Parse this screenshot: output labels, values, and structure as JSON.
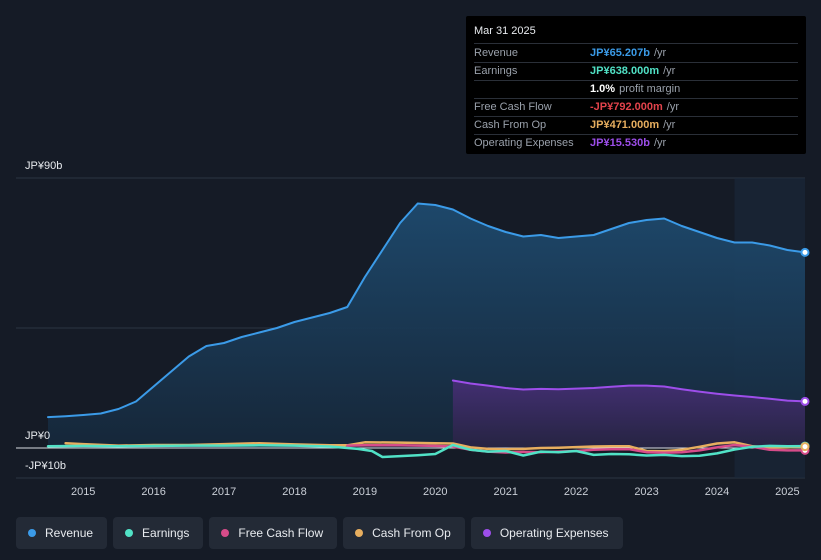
{
  "chart_data": {
    "type": "area",
    "title": "",
    "y_unit": "JP¥",
    "ylim": [
      -10,
      90
    ],
    "y_tick_labels": [
      "JP¥90b",
      "JP¥0",
      "-JP¥10b"
    ],
    "x_tick_labels": [
      "2015",
      "2016",
      "2017",
      "2018",
      "2019",
      "2020",
      "2021",
      "2022",
      "2023",
      "2024",
      "2025"
    ],
    "x_range": [
      2014.5,
      2025.25
    ],
    "highlight_from": 2024.25,
    "series": [
      {
        "name": "Revenue",
        "color": "#3b9be8",
        "fill": true,
        "x": [
          2014.5,
          2014.75,
          2015.0,
          2015.25,
          2015.5,
          2015.75,
          2016.0,
          2016.25,
          2016.5,
          2016.75,
          2017.0,
          2017.25,
          2017.5,
          2017.75,
          2018.0,
          2018.25,
          2018.5,
          2018.75,
          2019.0,
          2019.25,
          2019.5,
          2019.75,
          2020.0,
          2020.25,
          2020.5,
          2020.75,
          2021.0,
          2021.25,
          2021.5,
          2021.75,
          2022.0,
          2022.25,
          2022.5,
          2022.75,
          2023.0,
          2023.25,
          2023.5,
          2023.75,
          2024.0,
          2024.25,
          2024.5,
          2024.75,
          2025.0,
          2025.25
        ],
        "values": [
          10.3,
          10.6,
          11.0,
          11.5,
          13.0,
          15.5,
          20.5,
          25.5,
          30.5,
          34.0,
          35.0,
          37.0,
          38.5,
          40.0,
          42.0,
          43.5,
          45.0,
          47.0,
          57.0,
          66.0,
          75.0,
          81.5,
          81.0,
          79.5,
          76.5,
          74.0,
          72.0,
          70.5,
          71.0,
          70.0,
          70.5,
          71.0,
          73.0,
          75.0,
          76.0,
          76.5,
          74.0,
          72.0,
          70.0,
          68.5,
          68.5,
          67.5,
          66.0,
          65.207
        ]
      },
      {
        "name": "Earnings",
        "color": "#51e2c6",
        "fill": false,
        "x": [
          2014.5,
          2015.0,
          2015.5,
          2016.0,
          2016.5,
          2017.0,
          2017.5,
          2018.0,
          2018.5,
          2018.9,
          2019.1,
          2019.25,
          2019.5,
          2019.75,
          2020.0,
          2020.25,
          2020.5,
          2020.75,
          2021.0,
          2021.25,
          2021.5,
          2021.75,
          2022.0,
          2022.25,
          2022.5,
          2022.75,
          2023.0,
          2023.25,
          2023.5,
          2023.75,
          2024.0,
          2024.25,
          2024.5,
          2024.75,
          2025.0,
          2025.25
        ],
        "values": [
          0.6,
          0.7,
          0.6,
          0.7,
          0.8,
          0.8,
          0.9,
          0.8,
          0.5,
          -0.3,
          -1.0,
          -3.0,
          -2.7,
          -2.4,
          -2.0,
          1.0,
          -0.6,
          -1.2,
          -1.0,
          -2.5,
          -1.2,
          -1.4,
          -1.0,
          -2.3,
          -2.0,
          -2.1,
          -2.5,
          -2.3,
          -2.7,
          -2.6,
          -1.8,
          -0.5,
          0.4,
          0.7,
          0.6,
          0.638
        ]
      },
      {
        "name": "Free Cash Flow",
        "color": "#d74c8a",
        "fill": false,
        "x": [
          2018.75,
          2019.0,
          2019.5,
          2020.0,
          2020.25,
          2020.5,
          2020.75,
          2021.0,
          2021.25,
          2021.5,
          2021.75,
          2022.0,
          2022.25,
          2022.5,
          2022.75,
          2023.0,
          2023.25,
          2023.5,
          2023.75,
          2024.0,
          2024.25,
          2024.5,
          2024.75,
          2025.0,
          2025.25
        ],
        "values": [
          0.8,
          0.9,
          0.9,
          0.7,
          0.5,
          -0.6,
          -1.2,
          -1.5,
          -1.3,
          -1.4,
          -1.2,
          -1.0,
          -0.6,
          -0.4,
          -0.4,
          -1.4,
          -1.6,
          -1.4,
          -0.8,
          0.2,
          1.0,
          0.4,
          -0.6,
          -0.8,
          -0.792
        ]
      },
      {
        "name": "Cash From Op",
        "color": "#e7ae5f",
        "fill": false,
        "x": [
          2014.75,
          2015.0,
          2015.5,
          2016.0,
          2016.5,
          2017.0,
          2017.5,
          2018.0,
          2018.5,
          2018.75,
          2019.0,
          2019.5,
          2020.0,
          2020.25,
          2020.5,
          2020.75,
          2021.0,
          2021.25,
          2021.5,
          2021.75,
          2022.0,
          2022.25,
          2022.5,
          2022.75,
          2023.0,
          2023.25,
          2023.5,
          2023.75,
          2024.0,
          2024.25,
          2024.5,
          2024.75,
          2025.0,
          2025.25
        ],
        "values": [
          1.6,
          1.3,
          0.8,
          1.0,
          1.0,
          1.3,
          1.6,
          1.2,
          0.9,
          0.9,
          1.9,
          1.8,
          1.6,
          1.5,
          0.2,
          -0.3,
          -0.4,
          -0.3,
          0.0,
          0.1,
          0.3,
          0.5,
          0.6,
          0.6,
          -1.0,
          -1.1,
          -0.6,
          0.4,
          1.5,
          1.9,
          0.6,
          0.1,
          0.2,
          0.471
        ]
      },
      {
        "name": "Operating Expenses",
        "color": "#9d4eea",
        "fill": true,
        "x": [
          2020.25,
          2020.5,
          2020.75,
          2021.0,
          2021.25,
          2021.5,
          2021.75,
          2022.0,
          2022.25,
          2022.5,
          2022.75,
          2023.0,
          2023.25,
          2023.5,
          2023.75,
          2024.0,
          2024.25,
          2024.5,
          2024.75,
          2025.0,
          2025.25
        ],
        "values": [
          22.5,
          21.5,
          20.8,
          20.0,
          19.5,
          19.7,
          19.6,
          19.8,
          20.0,
          20.4,
          20.8,
          20.8,
          20.5,
          19.6,
          18.8,
          18.1,
          17.5,
          17.0,
          16.4,
          15.8,
          15.53
        ]
      }
    ]
  },
  "tooltip": {
    "date": "Mar 31 2025",
    "rows": [
      {
        "label": "Revenue",
        "value": "JP¥65.207b",
        "unit": "/yr",
        "color": "#3b9be8"
      },
      {
        "label": "Earnings",
        "value": "JP¥638.000m",
        "unit": "/yr",
        "color": "#51e2c6"
      },
      {
        "label": "",
        "value": "1.0%",
        "unit": "profit margin",
        "color": "#ffffff"
      },
      {
        "label": "Free Cash Flow",
        "value": "-JP¥792.000m",
        "unit": "/yr",
        "color": "#e2434b"
      },
      {
        "label": "Cash From Op",
        "value": "JP¥471.000m",
        "unit": "/yr",
        "color": "#e7ae5f"
      },
      {
        "label": "Operating Expenses",
        "value": "JP¥15.530b",
        "unit": "/yr",
        "color": "#9d4eea"
      }
    ]
  },
  "legend": [
    {
      "label": "Revenue",
      "color": "#3b9be8"
    },
    {
      "label": "Earnings",
      "color": "#51e2c6"
    },
    {
      "label": "Free Cash Flow",
      "color": "#d74c8a"
    },
    {
      "label": "Cash From Op",
      "color": "#e7ae5f"
    },
    {
      "label": "Operating Expenses",
      "color": "#9d4eea"
    }
  ]
}
